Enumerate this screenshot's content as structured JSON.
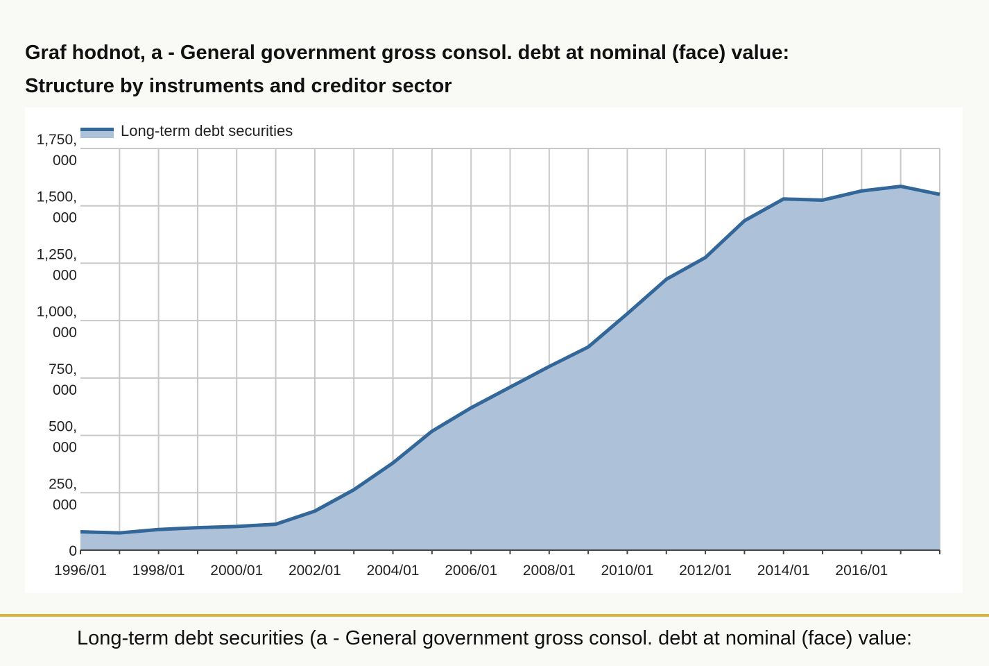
{
  "page": {
    "title_line1": "Graf hodnot, a - General government gross consol. debt at nominal (face) value:",
    "title_line2": "Structure by instruments and creditor sector",
    "caption": "Long-term debt securities (a - General government gross consol. debt at nominal (face) value:"
  },
  "chart_data": {
    "type": "area",
    "title": "",
    "xlabel": "",
    "ylabel": "",
    "ylim": [
      0,
      1750000
    ],
    "y_ticks": [
      0,
      250000,
      500000,
      750000,
      1000000,
      1250000,
      1500000,
      1750000
    ],
    "y_tick_labels": [
      {
        "line1": "0",
        "line2": ""
      },
      {
        "line1": "250,",
        "line2": "000"
      },
      {
        "line1": "500,",
        "line2": "000"
      },
      {
        "line1": "750,",
        "line2": "000"
      },
      {
        "line1": "1,000,",
        "line2": "000"
      },
      {
        "line1": "1,250,",
        "line2": "000"
      },
      {
        "line1": "1,500,",
        "line2": "000"
      },
      {
        "line1": "1,750,",
        "line2": "000"
      }
    ],
    "x_tick_labels": [
      "1996/01",
      "1998/01",
      "2000/01",
      "2002/01",
      "2004/01",
      "2006/01",
      "2008/01",
      "2010/01",
      "2012/01",
      "2014/01",
      "2016/01"
    ],
    "grid": true,
    "legend_position": "top-left",
    "x": [
      "1996/01",
      "1997/01",
      "1998/01",
      "1999/01",
      "2000/01",
      "2001/01",
      "2002/01",
      "2003/01",
      "2004/01",
      "2005/01",
      "2006/01",
      "2007/01",
      "2008/01",
      "2009/01",
      "2010/01",
      "2011/01",
      "2012/01",
      "2013/01",
      "2014/01",
      "2015/01",
      "2016/01",
      "2017/01",
      "2018/01"
    ],
    "series": [
      {
        "name": "Long-term debt securities",
        "line_color": "#336699",
        "fill_color": "#adc2d8",
        "values": [
          80000,
          75000,
          90000,
          98000,
          103000,
          113000,
          170000,
          263000,
          380000,
          518000,
          620000,
          710000,
          800000,
          885000,
          1030000,
          1180000,
          1275000,
          1435000,
          1530000,
          1525000,
          1565000,
          1585000,
          1550000
        ]
      }
    ]
  }
}
